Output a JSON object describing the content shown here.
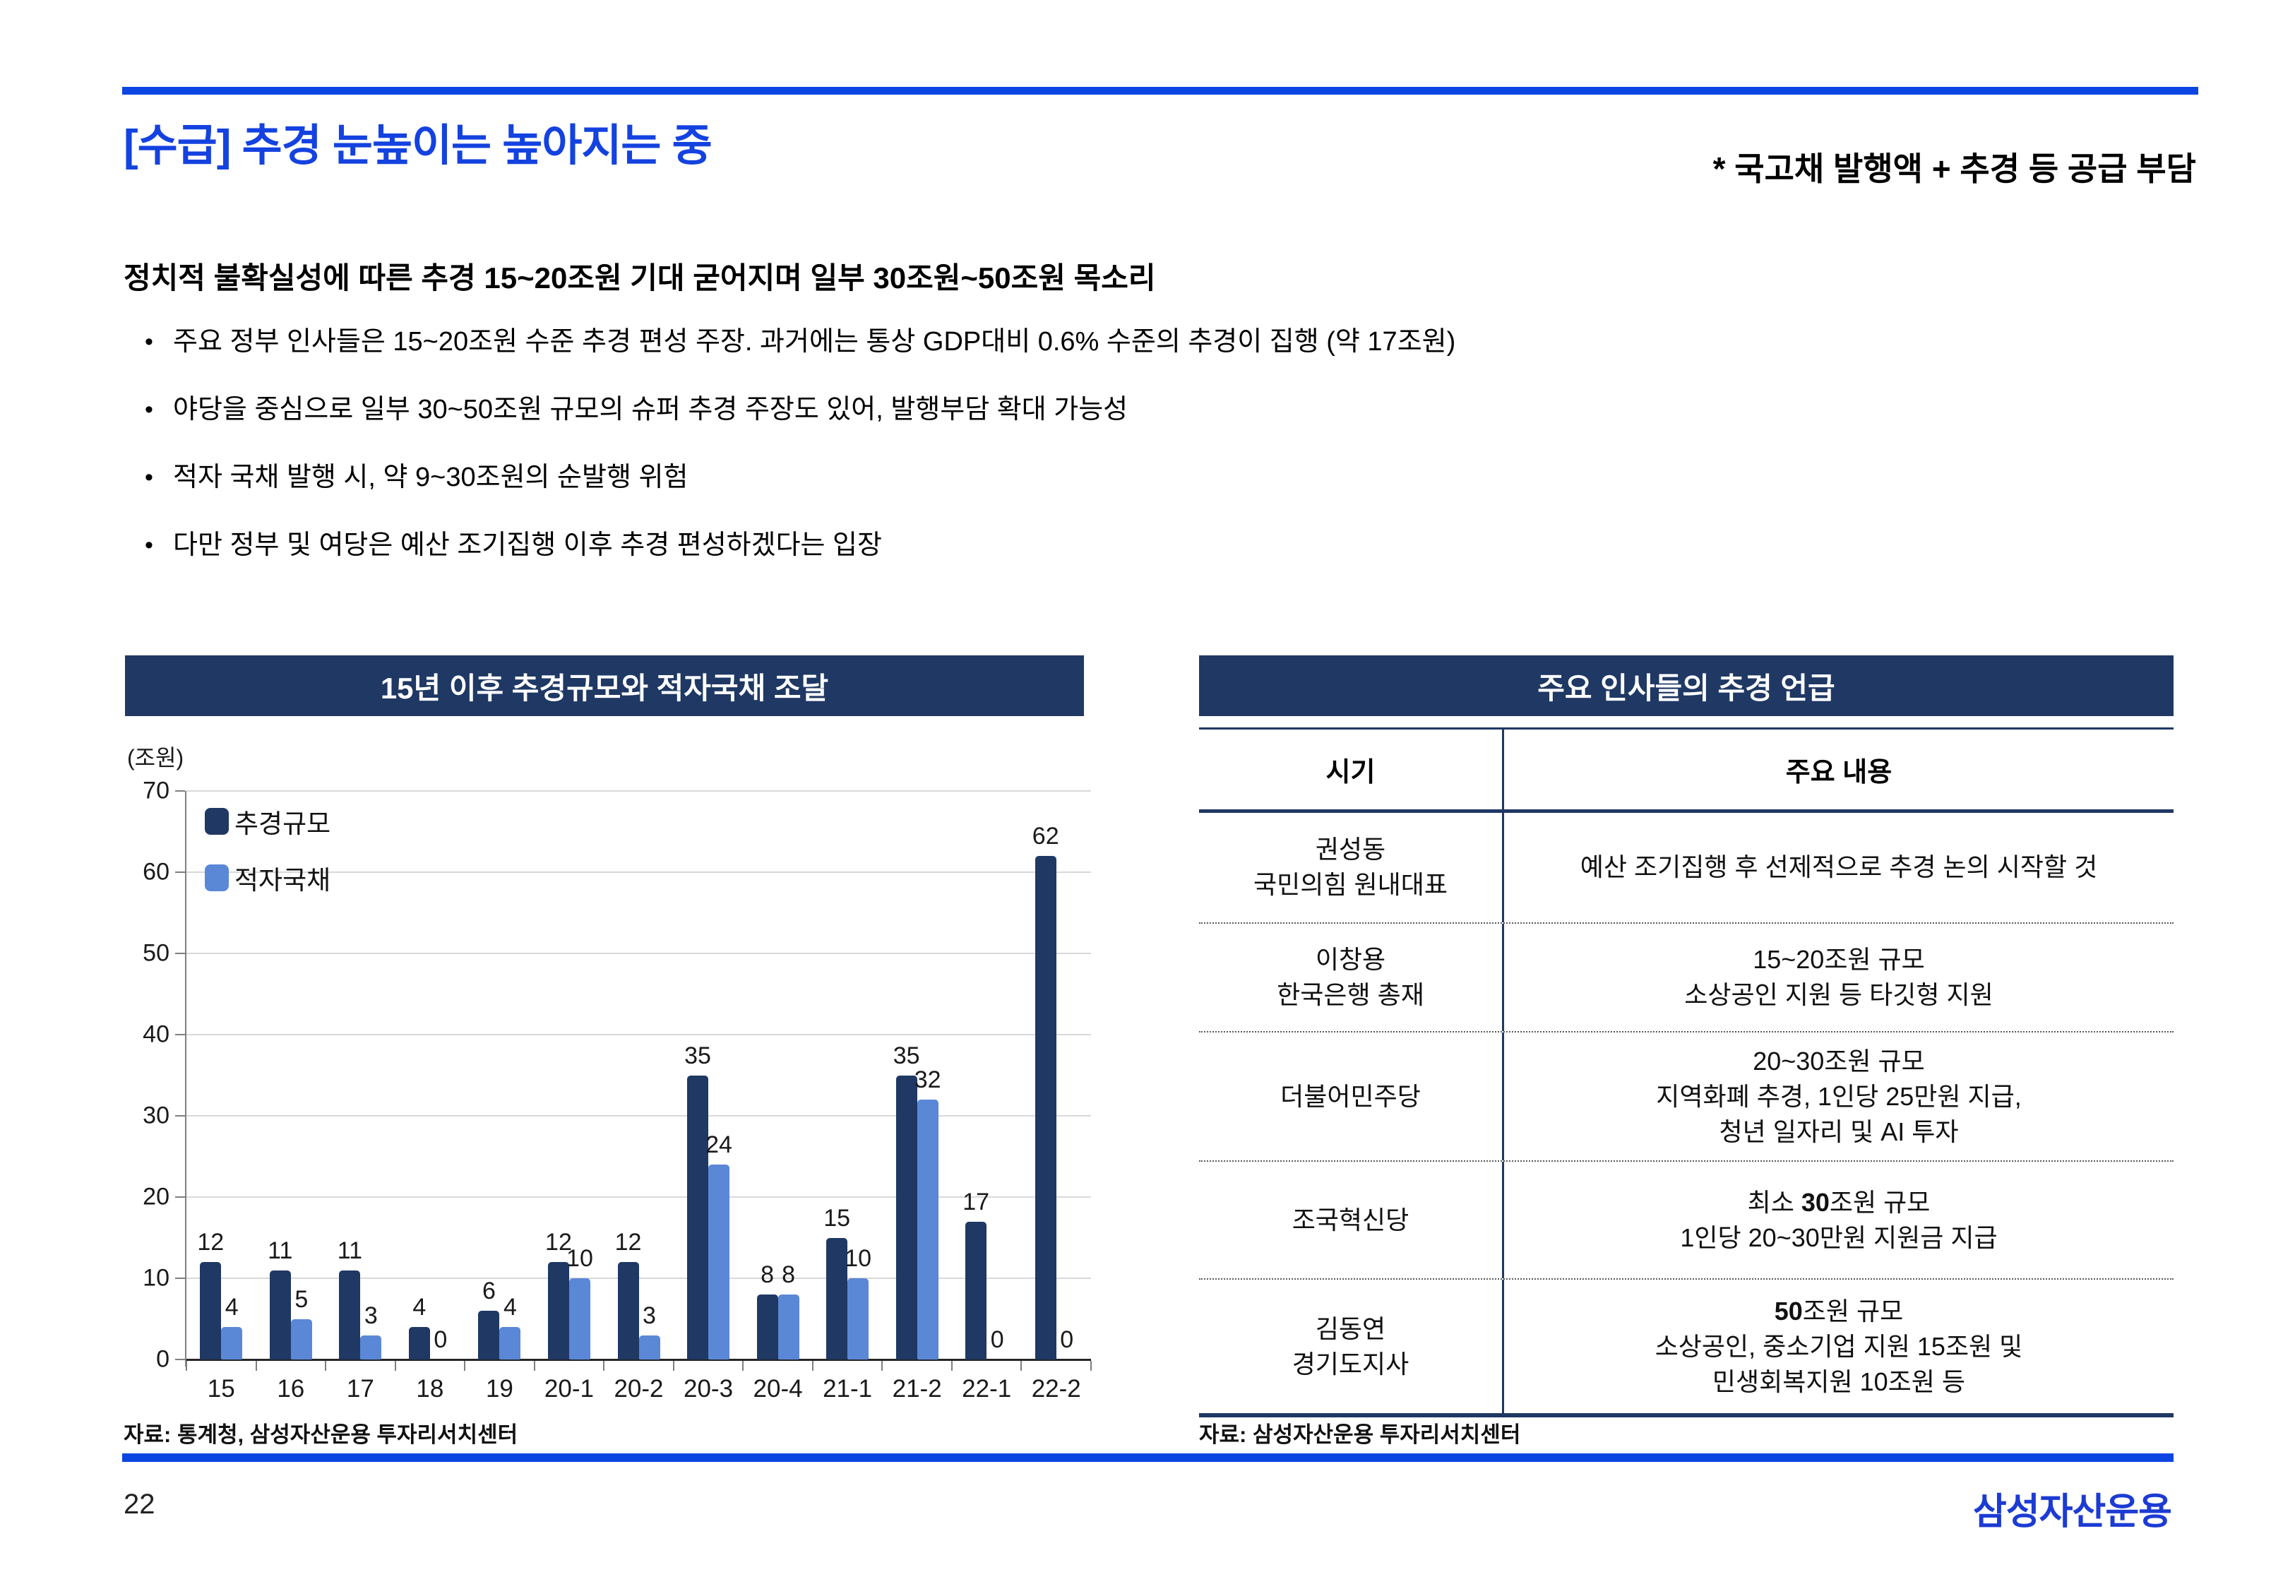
{
  "slide": {
    "title": "[수급] 추경 눈높이는 높아지는 중",
    "annotation": "* 국고채 발행액 + 추경 등 공급 부담",
    "page_number": "22",
    "logo_text": "삼성자산운용",
    "colors": {
      "navy": "#1f3864",
      "light_blue": "#5b87d7",
      "bright_blue": "#0b46e2",
      "title_blue": "#1442e0",
      "logo_blue": "#1c3bd4",
      "gridline": "#d9d9d9"
    }
  },
  "intro": {
    "heading": "정치적 불확실성에 따른 추경 15~20조원 기대 굳어지며 일부 30조원~50조원 목소리",
    "bullets": [
      "주요 정부 인사들은 15~20조원 수준 추경 편성 주장. 과거에는 통상 GDP대비 0.6% 수준의 추경이 집행 (약 17조원)",
      "야당을 중심으로 일부 30~50조원 규모의 슈퍼 추경 주장도 있어, 발행부담 확대 가능성",
      "적자 국채 발행 시, 약 9~30조원의 순발행 위험",
      "다만 정부 및 여당은 예산 조기집행 이후 추경 편성하겠다는 입장"
    ]
  },
  "left_panel": {
    "title": "15년 이후 추경규모와 적자국채 조달",
    "unit_label": "(조원)",
    "source": "자료: 통계청, 삼성자산운용 투자리서치센터"
  },
  "chart_data": {
    "type": "bar",
    "title": "15년 이후 추경규모와 적자국채 조달",
    "unit": "조원",
    "categories": [
      "15",
      "16",
      "17",
      "18",
      "19",
      "20-1",
      "20-2",
      "20-3",
      "20-4",
      "21-1",
      "21-2",
      "22-1",
      "22-2"
    ],
    "series": [
      {
        "name": "추경규모",
        "color": "#1f3864",
        "values": [
          12,
          11,
          11,
          4,
          6,
          12,
          12,
          35,
          8,
          15,
          35,
          17,
          62
        ]
      },
      {
        "name": "적자국채",
        "color": "#5b87d7",
        "values": [
          4,
          5,
          3,
          0,
          4,
          10,
          3,
          24,
          8,
          10,
          32,
          0,
          0
        ]
      }
    ],
    "ylim": [
      0,
      70
    ],
    "yticks": [
      0,
      10,
      20,
      30,
      40,
      50,
      60,
      70
    ],
    "grid": true,
    "legend_position": "inside-top-left",
    "data_labels": true
  },
  "right_panel": {
    "title": "주요 인사들의 추경 언급",
    "source": "자료: 삼성자산운용 투자리서치센터",
    "table": {
      "columns": [
        "시기",
        "주요 내용"
      ],
      "rows": [
        {
          "who": [
            "권성동",
            "국민의힘 원내대표"
          ],
          "content": [
            [
              {
                "text": "예산 조기집행 후 선제적으로 추경 논의 시작할 것",
                "bold": false
              }
            ]
          ],
          "height": 158
        },
        {
          "who": [
            "이창용",
            "한국은행 총재"
          ],
          "content": [
            [
              {
                "text": "15~20조원 규모",
                "bold": false
              }
            ],
            [
              {
                "text": "소상공인 지원 등 타깃형 지원",
                "bold": false
              }
            ]
          ],
          "height": 156
        },
        {
          "who": [
            "더불어민주당"
          ],
          "content": [
            [
              {
                "text": "20~30조원 규모",
                "bold": false
              }
            ],
            [
              {
                "text": "지역화폐 추경, 1인당 25만원 지급,",
                "bold": false
              }
            ],
            [
              {
                "text": "청년 일자리 및 AI 투자",
                "bold": false
              }
            ]
          ],
          "height": 185
        },
        {
          "who": [
            "조국혁신당"
          ],
          "content": [
            [
              {
                "text": "최소 ",
                "bold": false
              },
              {
                "text": "30",
                "bold": true
              },
              {
                "text": "조원 규모",
                "bold": false
              }
            ],
            [
              {
                "text": "1인당 20~30만원 지원금 지급",
                "bold": false
              }
            ]
          ],
          "height": 169
        },
        {
          "who": [
            "김동연",
            "경기도지사"
          ],
          "content": [
            [
              {
                "text": "50",
                "bold": true
              },
              {
                "text": "조원 규모",
                "bold": false
              }
            ],
            [
              {
                "text": "소상공인, 중소기업 지원 15조원 및",
                "bold": false
              }
            ],
            [
              {
                "text": "민생회복지원 10조원 등",
                "bold": false
              }
            ]
          ],
          "height": 193
        }
      ]
    }
  }
}
